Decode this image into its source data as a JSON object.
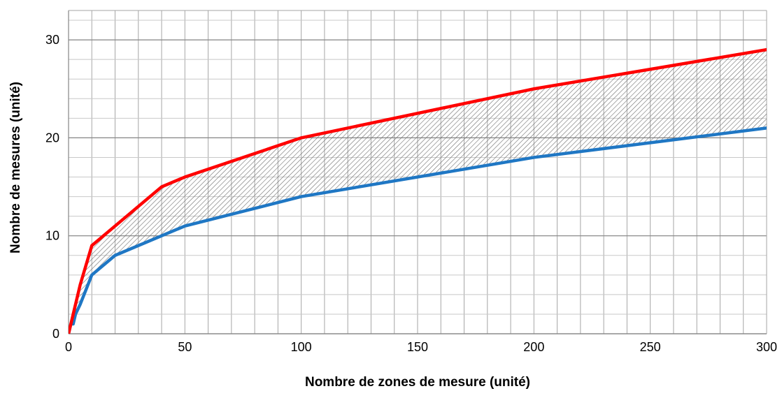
{
  "chart_data": {
    "type": "line",
    "title": "",
    "xlabel": "Nombre de zones de mesure (unité)",
    "ylabel": "Nombre de mesures (unité)",
    "xlim": [
      0,
      300
    ],
    "ylim": [
      0,
      33
    ],
    "x_ticks": [
      0,
      50,
      100,
      150,
      200,
      250,
      300
    ],
    "y_ticks": [
      0,
      10,
      20,
      30
    ],
    "grid": true,
    "legend": "none",
    "shaded_region_between_series": true,
    "series": [
      {
        "color": "#ff0000",
        "x": [
          0,
          1,
          2,
          5,
          10,
          20,
          40,
          50,
          100,
          200,
          300
        ],
        "y": [
          0,
          1,
          2,
          5,
          9,
          11,
          15,
          16,
          20,
          25,
          29
        ]
      },
      {
        "color": "#1f77c4",
        "x": [
          0,
          1,
          2,
          3,
          5,
          10,
          20,
          40,
          50,
          100,
          200,
          300
        ],
        "y": [
          0,
          1,
          1,
          2,
          3,
          6,
          8,
          10,
          11,
          14,
          18,
          21
        ]
      }
    ]
  }
}
